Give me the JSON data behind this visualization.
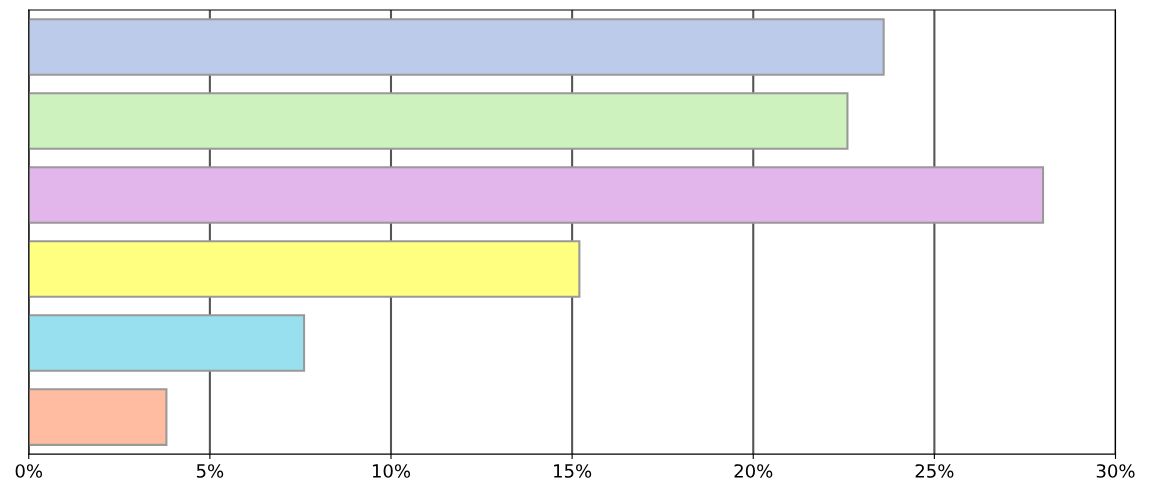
{
  "chart_data": {
    "type": "bar",
    "orientation": "horizontal",
    "categories": [
      null,
      null,
      null,
      null,
      null,
      null
    ],
    "values": [
      23.6,
      22.6,
      28.0,
      15.2,
      7.6,
      3.8
    ],
    "colors": [
      "#bccbea",
      "#cdf2bd",
      "#e2b6ea",
      "#ffff80",
      "#98e0f0",
      "#ffbca0"
    ],
    "xlim": [
      0,
      30
    ],
    "xticks": [
      {
        "value": 0,
        "label": "0%"
      },
      {
        "value": 5,
        "label": "5%"
      },
      {
        "value": 10,
        "label": "10%"
      },
      {
        "value": 15,
        "label": "15%"
      },
      {
        "value": 20,
        "label": "20%"
      },
      {
        "value": 25,
        "label": "25%"
      },
      {
        "value": 30,
        "label": "30%"
      }
    ],
    "grid": "x",
    "tick_labels": "x"
  }
}
